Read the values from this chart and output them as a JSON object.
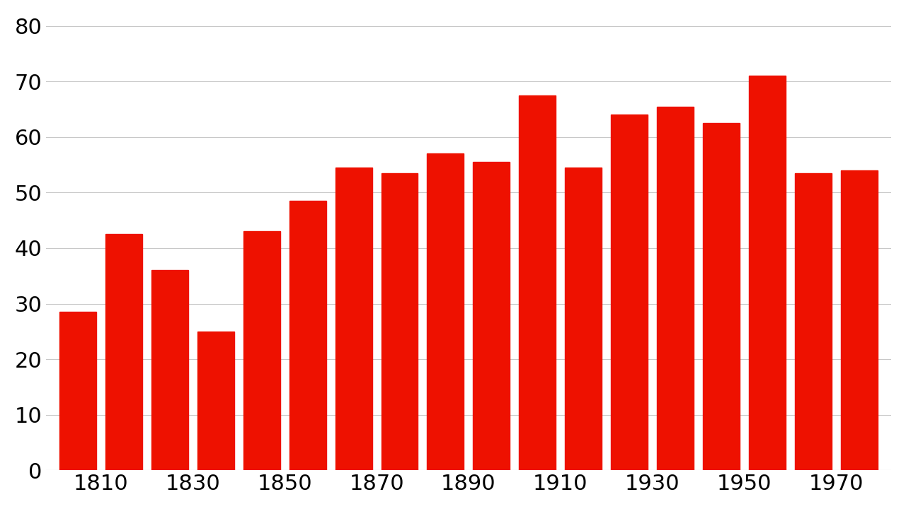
{
  "values": [
    28.5,
    42.5,
    36.0,
    25.0,
    43.0,
    48.5,
    54.5,
    53.5,
    57.0,
    55.5,
    67.5,
    54.5,
    64.0,
    65.5,
    62.5,
    71.0,
    53.5,
    54.0
  ],
  "bar_color": "#ee1100",
  "bar_width": 0.8,
  "ylim": [
    0,
    82
  ],
  "yticks": [
    0,
    10,
    20,
    30,
    40,
    50,
    60,
    70,
    80
  ],
  "x_labels": [
    "1810",
    "1830",
    "1850",
    "1870",
    "1890",
    "1910",
    "1930",
    "1950",
    "1970"
  ],
  "background_color": "#ffffff",
  "grid_color": "#c8c8c8",
  "tick_fontsize": 22,
  "n_bars": 18,
  "n_groups": 9
}
